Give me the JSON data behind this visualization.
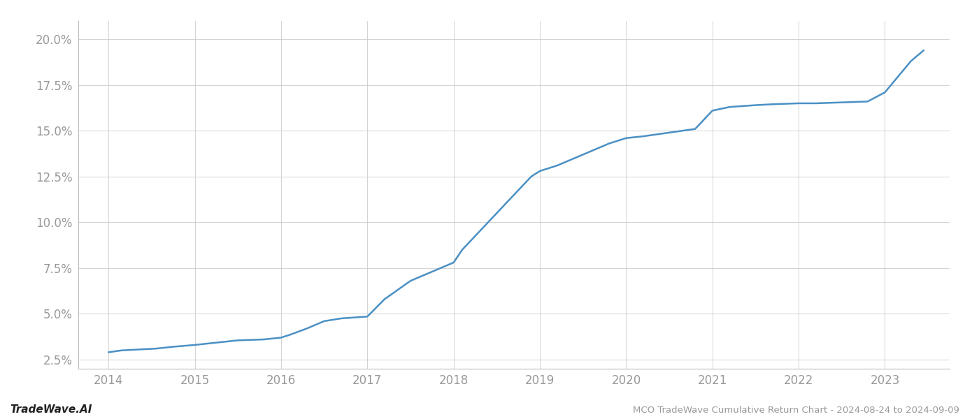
{
  "title": "MCO TradeWave Cumulative Return Chart - 2024-08-24 to 2024-09-09",
  "watermark": "TradeWave.AI",
  "line_color": "#4a90c4",
  "background_color": "#ffffff",
  "grid_color": "#cccccc",
  "axis_label_color": "#999999",
  "x_values": [
    2014.0,
    2014.15,
    2014.35,
    2014.55,
    2014.75,
    2015.0,
    2015.2,
    2015.5,
    2015.8,
    2016.0,
    2016.1,
    2016.3,
    2016.5,
    2016.7,
    2016.85,
    2017.0,
    2017.2,
    2017.5,
    2017.8,
    2018.0,
    2018.1,
    2018.3,
    2018.5,
    2018.7,
    2018.9,
    2019.0,
    2019.2,
    2019.4,
    2019.6,
    2019.8,
    2020.0,
    2020.2,
    2020.5,
    2020.8,
    2021.0,
    2021.2,
    2021.5,
    2021.7,
    2022.0,
    2022.2,
    2022.5,
    2022.8,
    2023.0,
    2023.3,
    2023.45
  ],
  "y_values": [
    2.9,
    3.0,
    3.05,
    3.1,
    3.2,
    3.3,
    3.4,
    3.55,
    3.6,
    3.7,
    3.85,
    4.2,
    4.6,
    4.75,
    4.8,
    4.85,
    5.8,
    6.8,
    7.4,
    7.8,
    8.5,
    9.5,
    10.5,
    11.5,
    12.5,
    12.8,
    13.1,
    13.5,
    13.9,
    14.3,
    14.6,
    14.7,
    14.9,
    15.1,
    16.1,
    16.3,
    16.4,
    16.45,
    16.5,
    16.5,
    16.55,
    16.6,
    17.1,
    18.8,
    19.4
  ],
  "ylim": [
    2.0,
    21.0
  ],
  "xlim": [
    2013.65,
    2023.75
  ],
  "yticks": [
    2.5,
    5.0,
    7.5,
    10.0,
    12.5,
    15.0,
    17.5,
    20.0
  ],
  "xticks": [
    2014,
    2015,
    2016,
    2017,
    2018,
    2019,
    2020,
    2021,
    2022,
    2023
  ],
  "line_width": 1.8,
  "figsize": [
    14.0,
    6.0
  ],
  "dpi": 100
}
